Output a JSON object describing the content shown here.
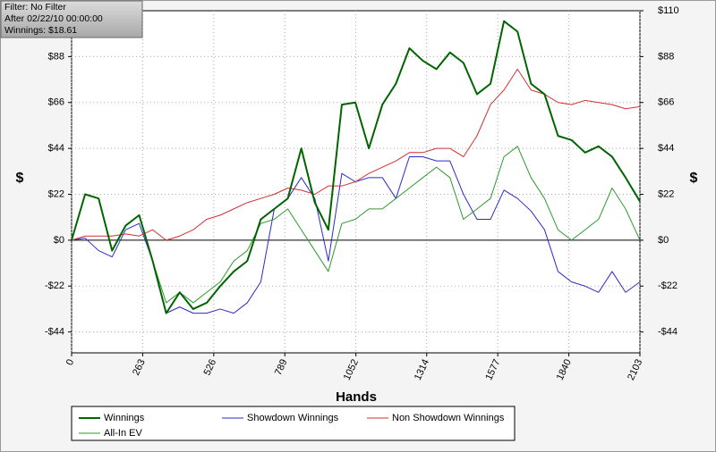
{
  "chart_data": {
    "type": "line",
    "annotations": [
      "Filter: No Filter",
      "After 02/22/10 00:00:00",
      "Winnings: $18.61"
    ],
    "x_label": "Hands",
    "y_label": "$",
    "y2_label": "$",
    "x": [
      0,
      50,
      100,
      150,
      200,
      250,
      300,
      350,
      400,
      450,
      500,
      550,
      600,
      650,
      700,
      750,
      800,
      850,
      900,
      950,
      1000,
      1050,
      1100,
      1150,
      1200,
      1250,
      1300,
      1350,
      1400,
      1450,
      1500,
      1550,
      1600,
      1650,
      1700,
      1750,
      1800,
      1850,
      1900,
      1950,
      2000,
      2050,
      2103
    ],
    "series": [
      {
        "name": "Winnings",
        "color": "#006400",
        "line_width": 2,
        "values": [
          0,
          22,
          20,
          -5,
          7,
          12,
          -10,
          -35,
          -25,
          -33,
          -30,
          -22,
          -15,
          -10,
          10,
          15,
          20,
          44,
          18,
          5,
          65,
          66,
          44,
          65,
          75,
          92,
          86,
          82,
          90,
          85,
          70,
          75,
          105,
          100,
          75,
          70,
          50,
          48,
          42,
          45,
          40,
          30,
          18.61
        ]
      },
      {
        "name": "Showdown Winnings",
        "color": "#2b2bc8",
        "line_width": 1,
        "values": [
          0,
          1,
          -5,
          -8,
          5,
          8,
          -10,
          -35,
          -32,
          -35,
          -35,
          -33,
          -35,
          -30,
          -20,
          15,
          20,
          30,
          20,
          -10,
          32,
          28,
          30,
          30,
          20,
          40,
          40,
          38,
          38,
          22,
          10,
          10,
          24,
          20,
          14,
          5,
          -15,
          -20,
          -22,
          -25,
          -15,
          -25,
          -20
        ]
      },
      {
        "name": "Non Showdown Winnings",
        "color": "#d03030",
        "line_width": 1,
        "values": [
          0,
          2,
          2,
          2,
          3,
          2,
          5,
          0,
          2,
          5,
          10,
          12,
          15,
          18,
          20,
          22,
          25,
          24,
          22,
          26,
          26,
          28,
          32,
          35,
          38,
          42,
          42,
          44,
          44,
          40,
          50,
          65,
          72,
          82,
          72,
          70,
          66,
          65,
          67,
          66,
          65,
          63,
          64
        ]
      },
      {
        "name": "All-In EV",
        "color": "#2e9a2e",
        "line_width": 1,
        "values": [
          0,
          22,
          20,
          -5,
          7,
          12,
          -10,
          -30,
          -25,
          -30,
          -25,
          -20,
          -10,
          -5,
          8,
          10,
          15,
          5,
          -5,
          -15,
          8,
          10,
          15,
          15,
          20,
          25,
          30,
          35,
          30,
          10,
          15,
          20,
          40,
          45,
          30,
          20,
          5,
          0,
          5,
          10,
          25,
          15,
          0
        ]
      }
    ],
    "xlim": [
      0,
      2103
    ],
    "xticks": [
      0,
      263,
      526,
      789,
      1052,
      1314,
      1577,
      1840,
      2103
    ],
    "ylim": [
      -54,
      110
    ],
    "yticks": [
      {
        "value": -44,
        "label": "-$44"
      },
      {
        "value": -22,
        "label": "-$22"
      },
      {
        "value": 0,
        "label": "$0"
      },
      {
        "value": 22,
        "label": "$22"
      },
      {
        "value": 44,
        "label": "$44"
      },
      {
        "value": 66,
        "label": "$66"
      },
      {
        "value": 88,
        "label": "$88"
      }
    ],
    "y2lim": [
      -54,
      110
    ],
    "y2ticks": [
      {
        "value": -44,
        "label": "-$44"
      },
      {
        "value": -22,
        "label": "-$22"
      },
      {
        "value": 0,
        "label": "$0"
      },
      {
        "value": 22,
        "label": "$22"
      },
      {
        "value": 44,
        "label": "$44"
      },
      {
        "value": 66,
        "label": "$66"
      },
      {
        "value": 88,
        "label": "$88"
      },
      {
        "value": 110,
        "label": "$110"
      }
    ],
    "grid": true,
    "legend": "bottom"
  }
}
